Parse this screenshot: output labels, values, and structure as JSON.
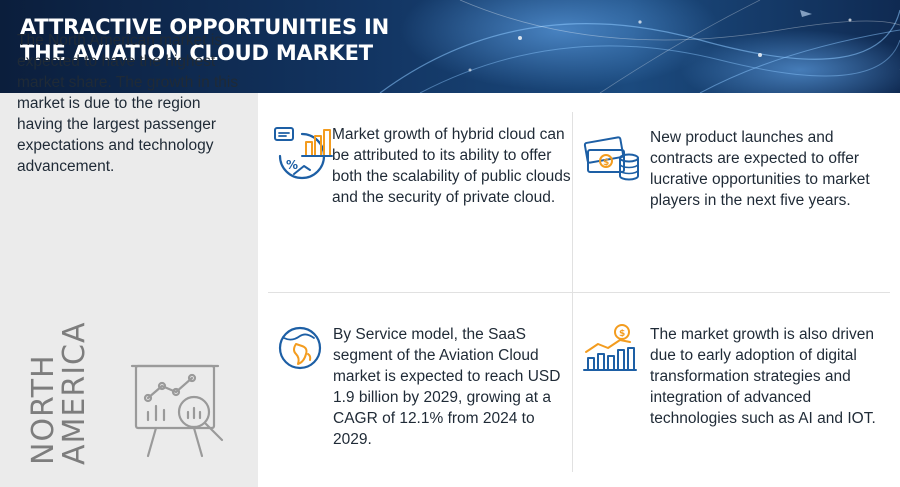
{
  "header": {
    "title": "Attractive Opportunities in the Aviation Cloud  Market"
  },
  "left_panel": {
    "text": "The North American market is expected to have the highest market share. The growth in this market is due to the region having the largest passenger expectations and technology advancement.",
    "region_label": "North\nAmerica",
    "icon": "presentation-analytics-icon"
  },
  "cards": [
    {
      "icon": "hybrid-cloud-growth-icon",
      "text": "Market growth of hybrid cloud can be attributed to its ability to offer both the scalability of public clouds and the security of private cloud."
    },
    {
      "icon": "money-coins-icon",
      "text": "New product launches and contracts are expected to offer lucrative opportunities to market players in the next five years."
    },
    {
      "icon": "globe-icon",
      "text": "By Service model, the SaaS segment of the Aviation Cloud market is expected to reach USD 1.9 billion by 2029, growing at a CAGR of 12.1% from 2024 to 2029."
    },
    {
      "icon": "bar-growth-dollar-icon",
      "text": "The market growth is also driven due to early adoption of digital transformation strategies and integration of advanced technologies such as AI and IOT."
    }
  ],
  "colors": {
    "banner_dark": "#0b1e3c",
    "banner_mid": "#1b4a7e",
    "icon_blue": "#1d5fa5",
    "icon_orange": "#f39c1f",
    "panel_gray": "#ebebeb",
    "label_gray": "#7d7d7d"
  }
}
